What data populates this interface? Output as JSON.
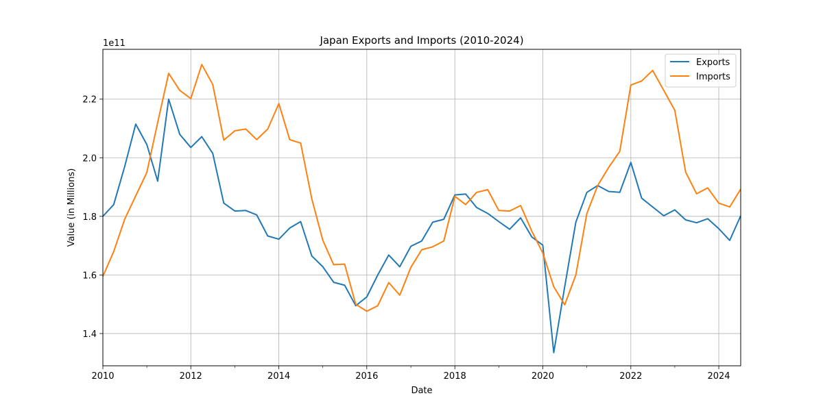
{
  "chart_data": {
    "type": "line",
    "title": "Japan Exports and Imports (2010-2024)",
    "xlabel": "Date",
    "ylabel": "Value (in Millions)",
    "y_offset_label": "1e11",
    "xlim": [
      "2010-01-01",
      "2024-07-01"
    ],
    "ylim": [
      1.29,
      2.37
    ],
    "x_ticks": [
      "2010",
      "2012",
      "2014",
      "2016",
      "2018",
      "2020",
      "2022",
      "2024"
    ],
    "y_ticks": [
      1.4,
      1.6,
      1.8,
      2.0,
      2.2
    ],
    "y_tick_labels": [
      "1.4",
      "1.6",
      "1.8",
      "2.0",
      "2.2"
    ],
    "grid": true,
    "legend_position": "top-right",
    "x": [
      "2010-01-01",
      "2010-04-01",
      "2010-07-01",
      "2010-10-01",
      "2011-01-01",
      "2011-04-01",
      "2011-07-01",
      "2011-10-01",
      "2012-01-01",
      "2012-04-01",
      "2012-07-01",
      "2012-10-01",
      "2013-01-01",
      "2013-04-01",
      "2013-07-01",
      "2013-10-01",
      "2014-01-01",
      "2014-04-01",
      "2014-07-01",
      "2014-10-01",
      "2015-01-01",
      "2015-04-01",
      "2015-07-01",
      "2015-10-01",
      "2016-01-01",
      "2016-04-01",
      "2016-07-01",
      "2016-10-01",
      "2017-01-01",
      "2017-04-01",
      "2017-07-01",
      "2017-10-01",
      "2018-01-01",
      "2018-04-01",
      "2018-07-01",
      "2018-10-01",
      "2019-01-01",
      "2019-04-01",
      "2019-07-01",
      "2019-10-01",
      "2020-01-01",
      "2020-04-01",
      "2020-07-01",
      "2020-10-01",
      "2021-01-01",
      "2021-04-01",
      "2021-07-01",
      "2021-10-01",
      "2022-01-01",
      "2022-04-01",
      "2022-07-01",
      "2022-10-01",
      "2023-01-01",
      "2023-04-01",
      "2023-07-01",
      "2023-10-01",
      "2024-01-01",
      "2024-04-01",
      "2024-07-01"
    ],
    "series": [
      {
        "name": "Exports",
        "color": "#1f77b4",
        "values": [
          1.8,
          1.84,
          1.97,
          2.115,
          2.045,
          1.92,
          2.2,
          2.08,
          2.035,
          2.072,
          2.015,
          1.845,
          1.818,
          1.82,
          1.805,
          1.733,
          1.722,
          1.76,
          1.782,
          1.665,
          1.628,
          1.575,
          1.565,
          1.495,
          1.525,
          1.6,
          1.668,
          1.628,
          1.698,
          1.716,
          1.78,
          1.79,
          1.873,
          1.876,
          1.83,
          1.81,
          1.782,
          1.756,
          1.795,
          1.73,
          1.702,
          1.335,
          1.56,
          1.78,
          1.882,
          1.905,
          1.885,
          1.882,
          1.984,
          1.862,
          1.832,
          1.802,
          1.822,
          1.788,
          1.778,
          1.792,
          1.758,
          1.718,
          1.802
        ]
      },
      {
        "name": "Imports",
        "color": "#ff7f0e",
        "values": [
          1.595,
          1.68,
          1.79,
          1.87,
          1.95,
          2.12,
          2.288,
          2.23,
          2.202,
          2.318,
          2.25,
          2.06,
          2.092,
          2.098,
          2.062,
          2.098,
          2.185,
          2.062,
          2.05,
          1.86,
          1.718,
          1.635,
          1.637,
          1.5,
          1.476,
          1.495,
          1.574,
          1.531,
          1.626,
          1.686,
          1.696,
          1.716,
          1.868,
          1.84,
          1.882,
          1.891,
          1.82,
          1.818,
          1.837,
          1.75,
          1.675,
          1.56,
          1.498,
          1.6,
          1.81,
          1.905,
          1.967,
          2.022,
          2.248,
          2.262,
          2.298,
          2.23,
          2.162,
          1.951,
          1.877,
          1.897,
          1.845,
          1.832,
          1.893
        ]
      }
    ]
  }
}
